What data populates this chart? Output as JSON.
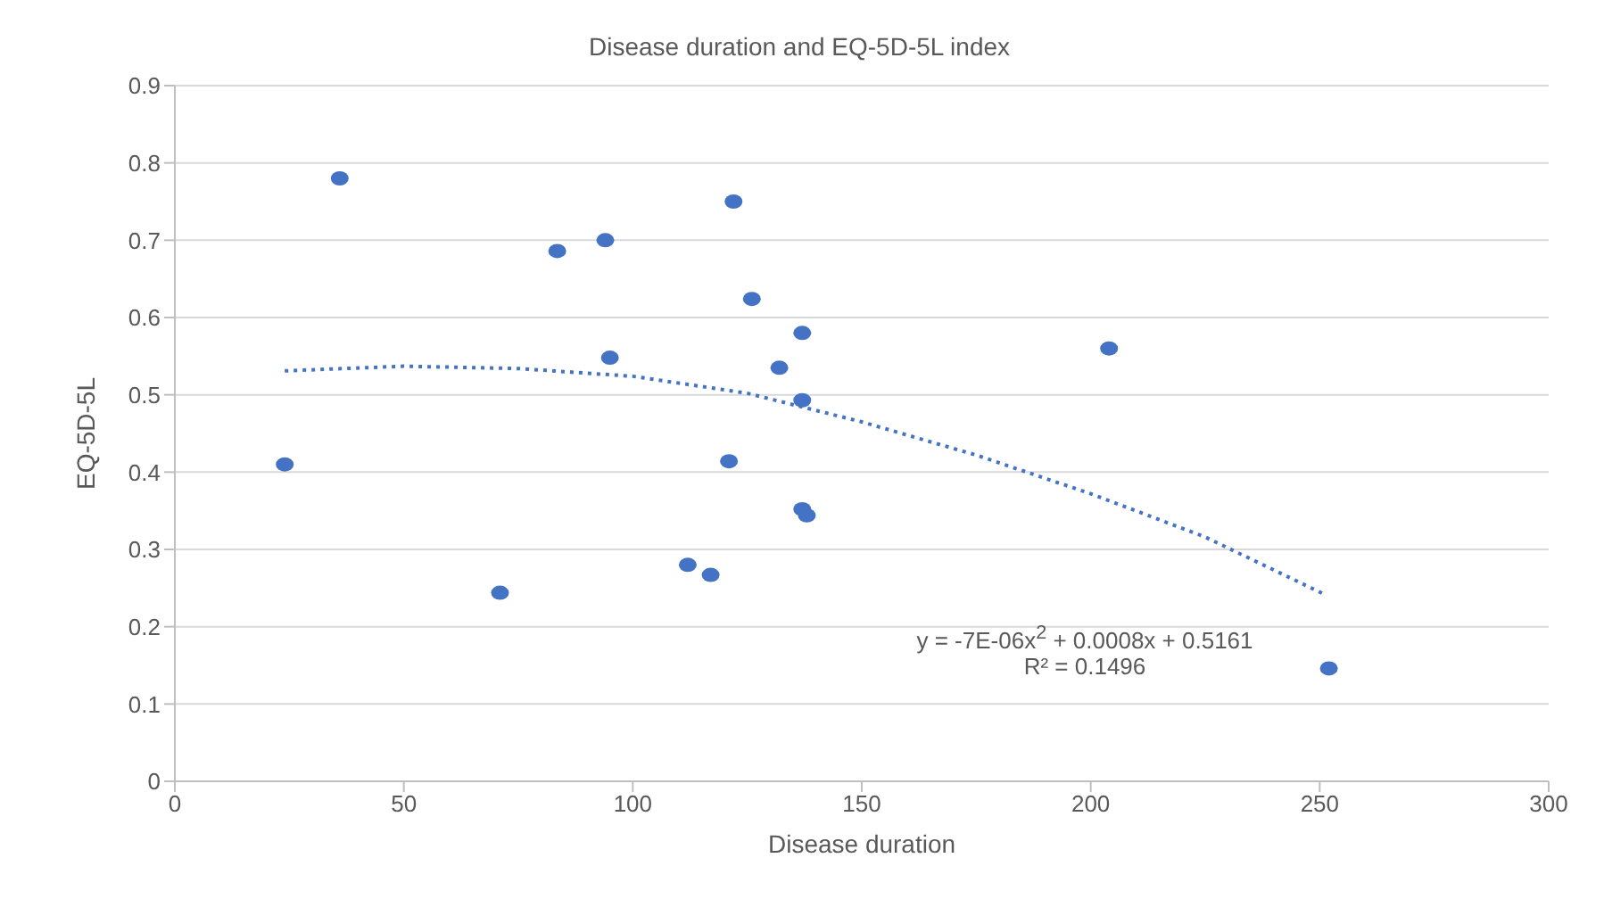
{
  "chart_data": {
    "type": "scatter",
    "title": "Disease duration and EQ-5D-5L index",
    "xlabel": "Disease duration",
    "ylabel": "EQ-5D-5L",
    "xlim": [
      0,
      300
    ],
    "xticks": [
      0,
      50,
      100,
      150,
      200,
      250,
      300
    ],
    "ylim": [
      0,
      0.9
    ],
    "yticks": [
      0,
      0.1,
      0.2,
      0.3,
      0.4,
      0.5,
      0.6,
      0.7,
      0.8,
      0.9
    ],
    "grid": "y",
    "legend": false,
    "series": [
      {
        "type": "scatter",
        "color": "#4472c4",
        "marker": "circle",
        "x": [
          36,
          122,
          83.5,
          94,
          126,
          137,
          95,
          132,
          137,
          204,
          24,
          121,
          137,
          138,
          112,
          117,
          71,
          252
        ],
        "values": [
          0.78,
          0.75,
          0.686,
          0.7,
          0.624,
          0.58,
          0.548,
          0.535,
          0.493,
          0.56,
          0.41,
          0.414,
          0.352,
          0.344,
          0.28,
          0.267,
          0.244,
          0.146
        ]
      },
      {
        "type": "line",
        "color": "#4472c4",
        "marker": "none",
        "line_style": "dotted",
        "x": [
          24,
          50,
          75,
          100,
          125,
          150,
          175,
          200,
          225,
          251
        ],
        "values": [
          0.531,
          0.537,
          0.534,
          0.524,
          0.502,
          0.465,
          0.422,
          0.372,
          0.316,
          0.242
        ]
      }
    ],
    "annotations": [
      "y = -7E-06x$^{2}$ + 0.0008x + 0.5161",
      "R² = 0.1496"
    ]
  }
}
